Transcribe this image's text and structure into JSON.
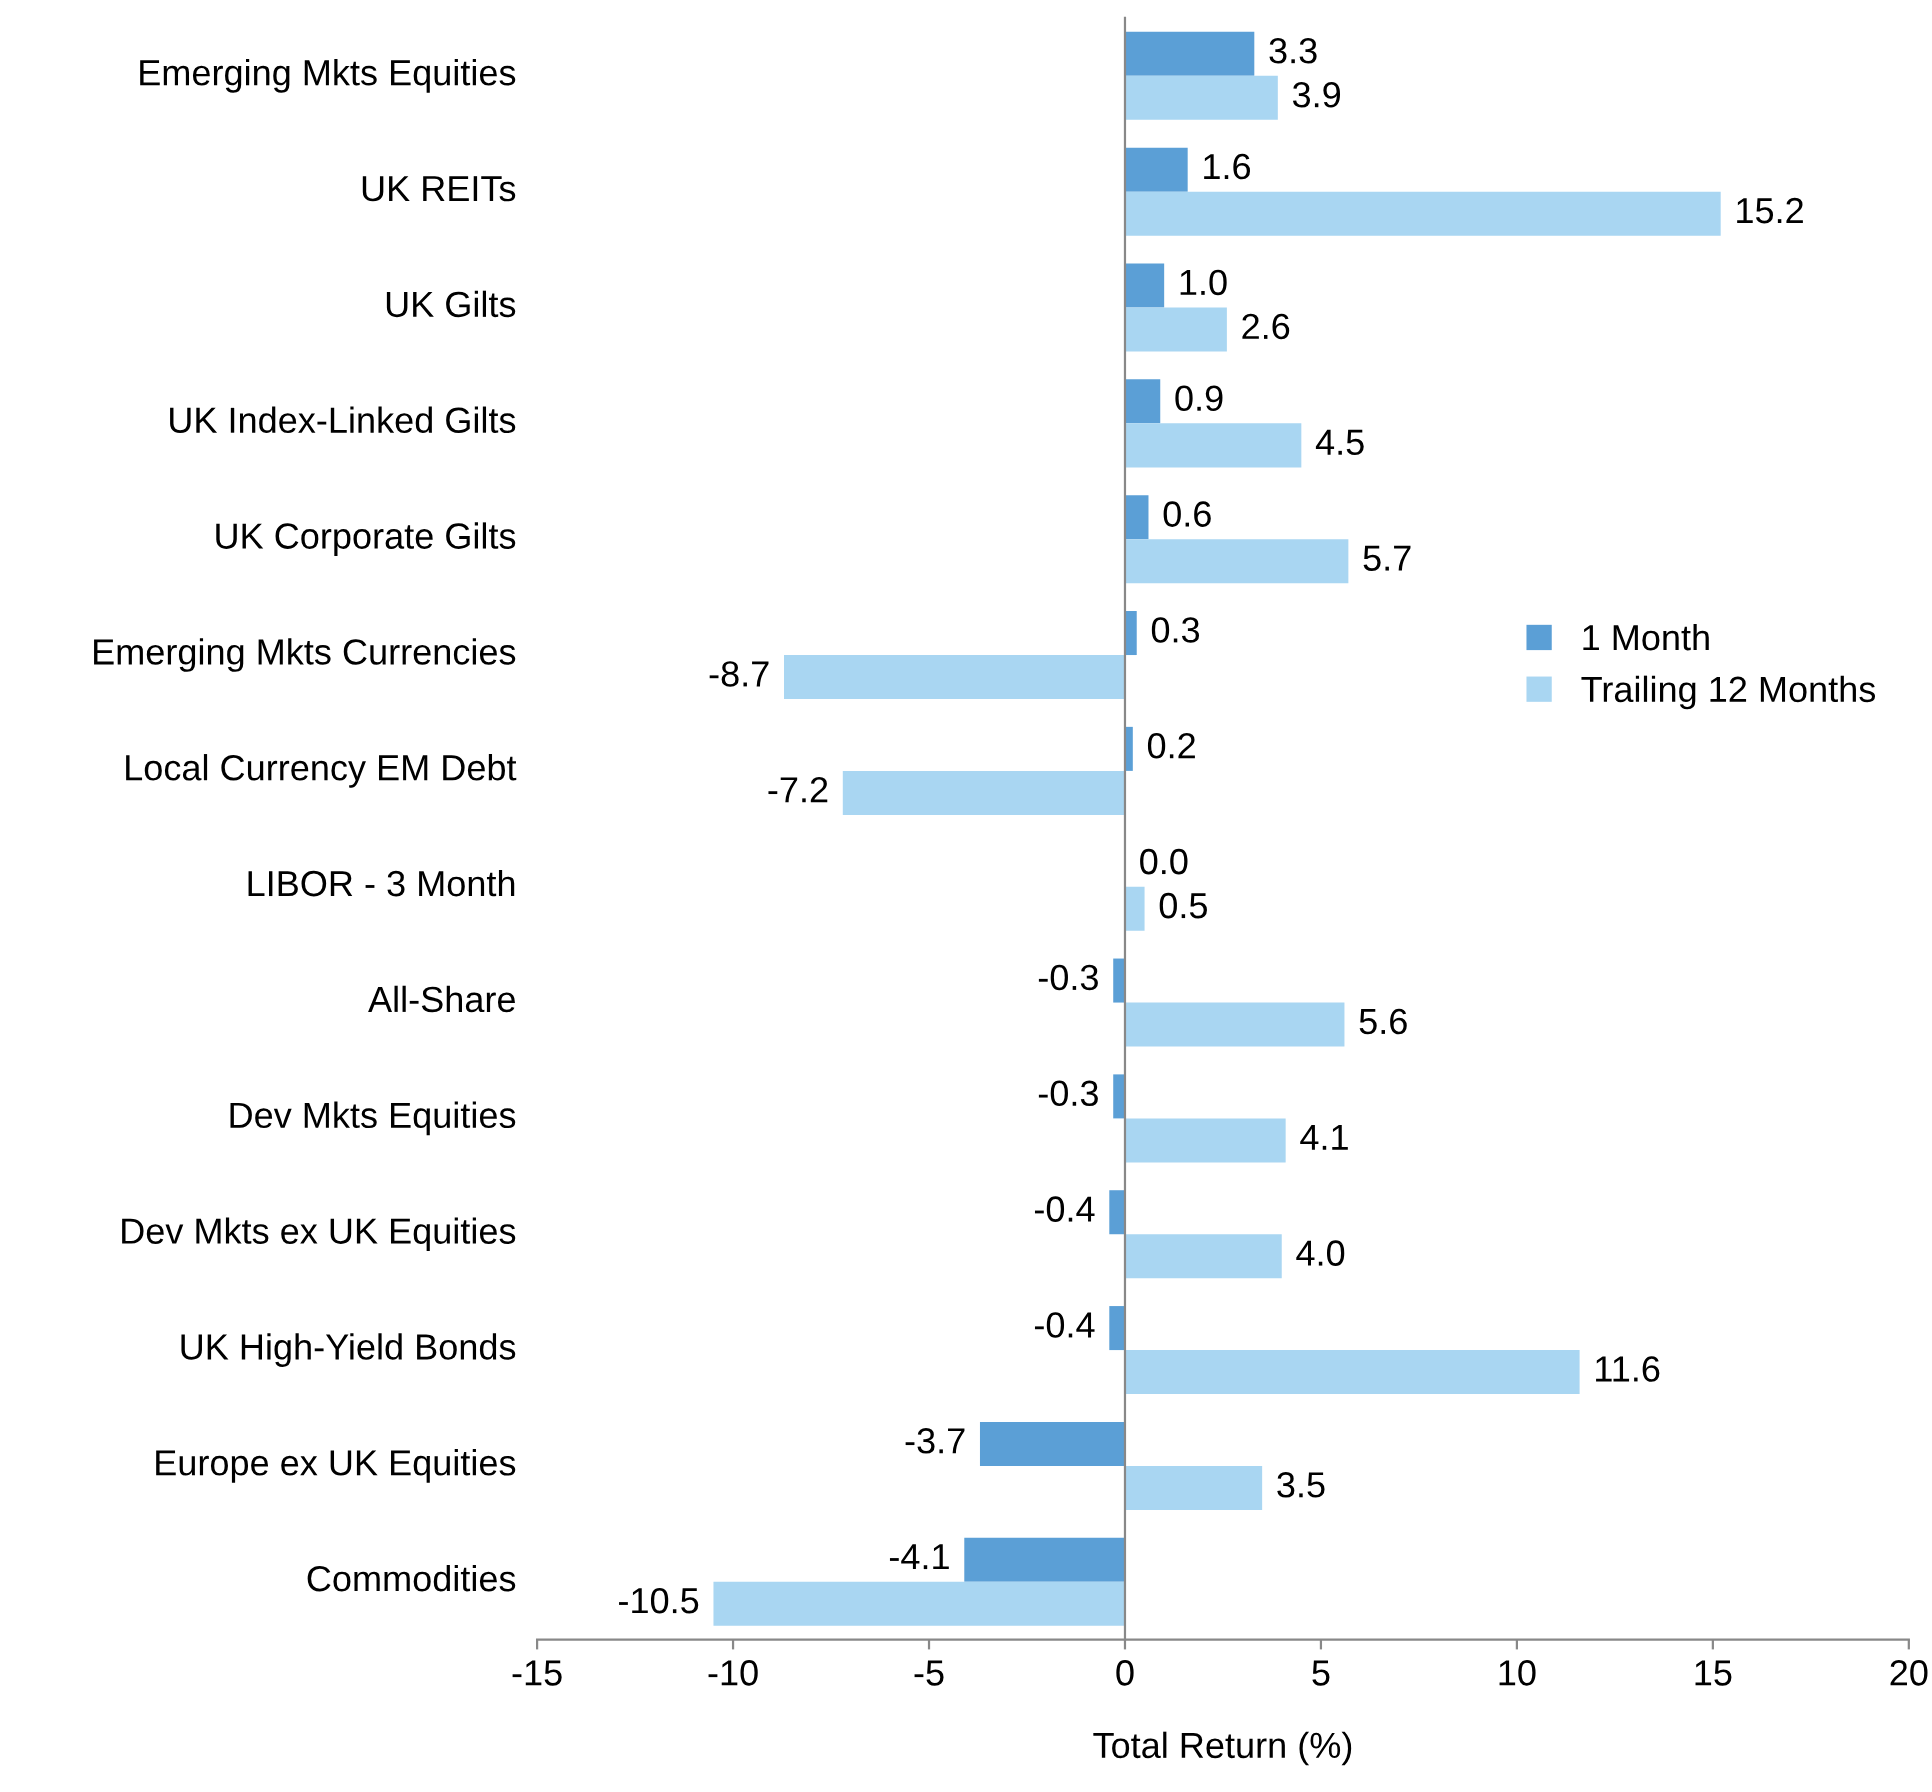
{
  "chart_data": {
    "type": "bar",
    "orientation": "horizontal",
    "xlabel": "Total Return (%)",
    "categories": [
      "Emerging Mkts Equities",
      "UK REITs",
      "UK Gilts",
      "UK Index-Linked Gilts",
      "UK Corporate Gilts",
      "Emerging Mkts Currencies",
      "Local Currency EM Debt",
      "LIBOR - 3 Month",
      "All-Share",
      "Dev Mkts Equities",
      "Dev Mkts ex UK Equities",
      "UK High-Yield Bonds",
      "Europe ex UK Equities",
      "Commodities"
    ],
    "series": [
      {
        "name": "1 Month",
        "color": "#5b9fd6",
        "values": [
          3.3,
          1.6,
          1.0,
          0.9,
          0.6,
          0.3,
          0.2,
          0.0,
          -0.3,
          -0.3,
          -0.4,
          -0.4,
          -3.7,
          -4.1
        ],
        "value_labels": [
          "3.3",
          "1.6",
          "1.0",
          "0.9",
          "0.6",
          "0.3",
          "0.2",
          "0.0",
          "-0.3",
          "-0.3",
          "-0.4",
          "-0.4",
          "-3.7",
          "-4.1"
        ]
      },
      {
        "name": "Trailing 12 Months",
        "color": "#a9d6f2",
        "values": [
          3.9,
          15.2,
          2.6,
          4.5,
          5.7,
          -8.7,
          -7.2,
          0.5,
          5.6,
          4.1,
          4.0,
          11.6,
          3.5,
          -10.5
        ],
        "value_labels": [
          "3.9",
          "15.2",
          "2.6",
          "4.5",
          "5.7",
          "-8.7",
          "-7.2",
          "0.5",
          "5.6",
          "4.1",
          "4.0",
          "11.6",
          "3.5",
          "-10.5"
        ]
      }
    ],
    "xlim": [
      -15,
      20
    ],
    "xticks": [
      -15,
      -10,
      -5,
      0,
      5,
      10,
      15,
      20
    ],
    "legend": "right"
  }
}
